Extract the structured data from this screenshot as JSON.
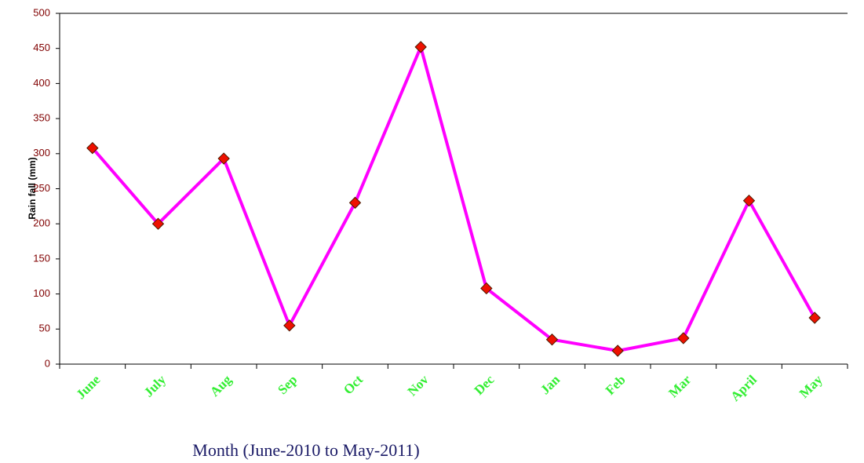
{
  "chart_data": {
    "type": "line",
    "y_label": "Rain fall (mm)",
    "x_label": "Month (June-2010 to May-2011)",
    "categories": [
      "June",
      "July",
      "Aug",
      "Sep",
      "Oct",
      "Nov",
      "Dec",
      "Jan",
      "Feb",
      "Mar",
      "April",
      "May"
    ],
    "series": [
      {
        "name": "Rain fall",
        "color": "#ff00ff",
        "marker_color": "#ee1100",
        "values": [
          308,
          200,
          293,
          55,
          230,
          452,
          108,
          35,
          19,
          37,
          233,
          66
        ]
      }
    ],
    "ylim": [
      0,
      500
    ],
    "yticks": [
      0,
      50,
      100,
      150,
      200,
      250,
      300,
      350,
      400,
      450,
      500
    ],
    "grid": false,
    "legend": false
  }
}
